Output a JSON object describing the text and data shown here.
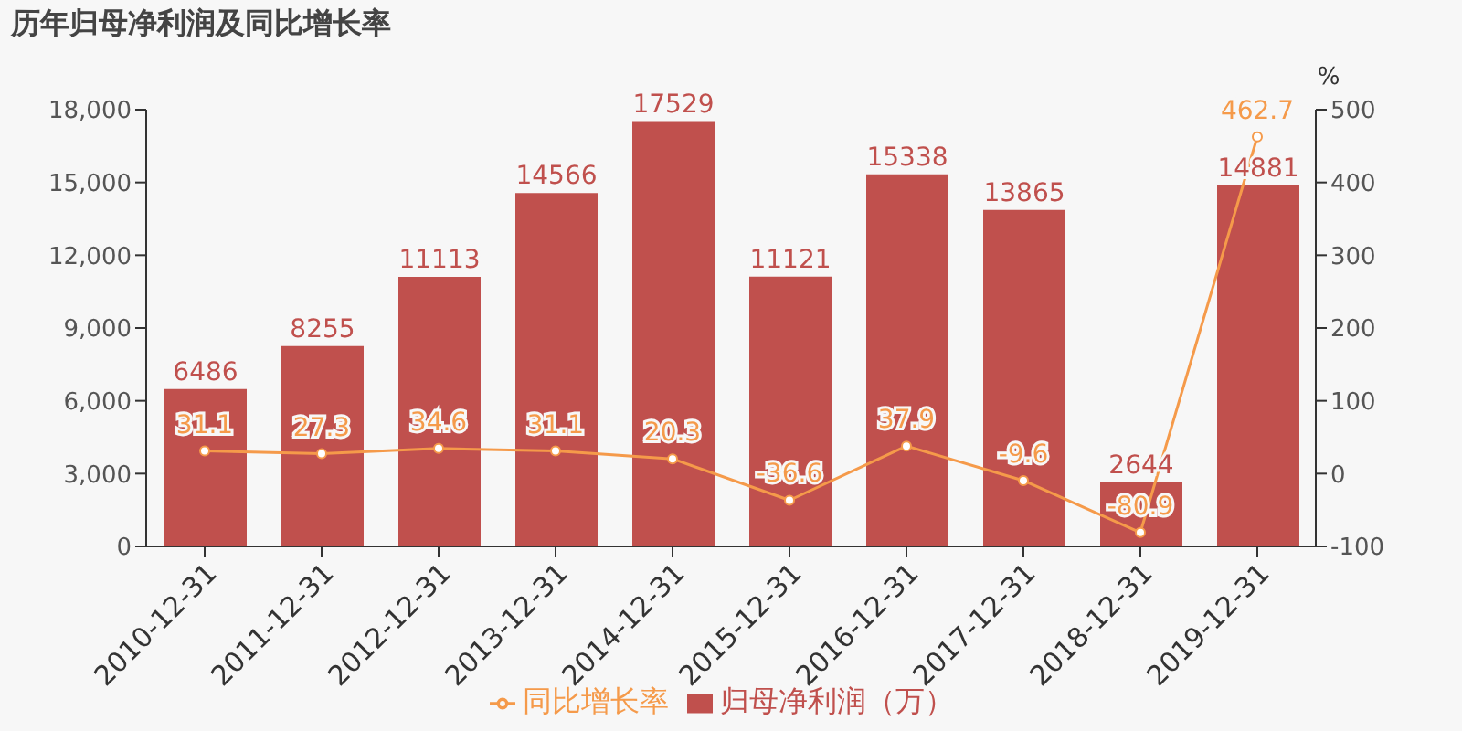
{
  "chart_data": {
    "type": "bar",
    "title": "历年归母净利润及同比增长率",
    "y2label": "%",
    "categories": [
      "2010-12-31",
      "2011-12-31",
      "2012-12-31",
      "2013-12-31",
      "2014-12-31",
      "2015-12-31",
      "2016-12-31",
      "2017-12-31",
      "2018-12-31",
      "2019-12-31"
    ],
    "series": [
      {
        "name": "归母净利润（万）",
        "color": "#c0504d",
        "values": [
          6486,
          8255,
          11113,
          14566,
          17529,
          11121,
          15338,
          13865,
          2644,
          14881
        ]
      },
      {
        "name": "同比增长率",
        "type": "line",
        "axis": "y2",
        "color": "#f59a4a",
        "values": [
          31.1,
          27.3,
          34.6,
          31.1,
          20.3,
          -36.6,
          37.9,
          -9.6,
          -80.9,
          462.7
        ]
      }
    ],
    "ylim": [
      0,
      18000
    ],
    "yticks": [
      0,
      {
        "value": 3000,
        "label": "3,000"
      },
      {
        "value": 6000,
        "label": "6,000"
      },
      {
        "value": 9000,
        "label": "9,000"
      },
      {
        "value": 12000,
        "label": "12,000"
      },
      {
        "value": 15000,
        "label": "15,000"
      },
      {
        "value": 18000,
        "label": "18,000"
      }
    ],
    "y2lim": [
      -100,
      500
    ],
    "y2ticks": [
      -100,
      0,
      100,
      200,
      300,
      400,
      500
    ],
    "data_labels": true,
    "legend": "bottom",
    "grid": false,
    "marker": "circle"
  }
}
